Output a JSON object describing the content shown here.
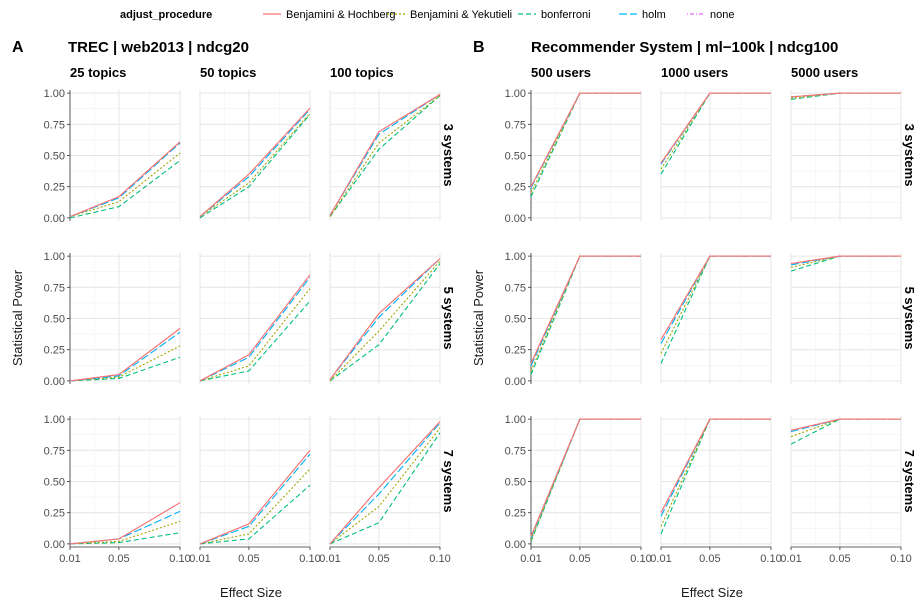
{
  "legend": {
    "title": "adjust_procedure",
    "items": [
      {
        "label": "Benjamini & Hochberg",
        "color": "#F8766D",
        "dash": "solid"
      },
      {
        "label": "Benjamini & Yekutieli",
        "color": "#A3A500",
        "dash": "dotted"
      },
      {
        "label": "bonferroni",
        "color": "#00BF7D",
        "dash": "dashed"
      },
      {
        "label": "holm",
        "color": "#00B0F6",
        "dash": "longdash"
      },
      {
        "label": "none",
        "color": "#E76BF3",
        "dash": "dotdash"
      }
    ]
  },
  "panels": [
    {
      "letter": "A",
      "title": "TREC | web2013 | ndcg20",
      "columns": [
        "25 topics",
        "50 topics",
        "100 topics"
      ]
    },
    {
      "letter": "B",
      "title": "Recommender System | ml−100k | ndcg100",
      "columns": [
        "500 users",
        "1000 users",
        "5000 users"
      ]
    }
  ],
  "rows": [
    "3 systems",
    "5 systems",
    "7 systems"
  ],
  "x_ticks": [
    "0.01",
    "0.05",
    "0.10"
  ],
  "y_ticks": [
    "0.00",
    "0.25",
    "0.50",
    "0.75",
    "1.00"
  ],
  "ylabel": "Statistical Power",
  "xlabel": "Effect Size",
  "chart_data": {
    "type": "line",
    "x": [
      0.01,
      0.05,
      0.1
    ],
    "ylim": [
      0,
      1
    ],
    "series_names": [
      "Benjamini & Hochberg",
      "Benjamini & Yekutieli",
      "bonferroni",
      "holm",
      "none"
    ],
    "facets": [
      {
        "panel": "A",
        "column": "25 topics",
        "row": "3 systems",
        "values": [
          [
            0.01,
            0.17,
            0.61
          ],
          [
            0.01,
            0.13,
            0.52
          ],
          [
            0.0,
            0.09,
            0.46
          ],
          [
            0.01,
            0.16,
            0.6
          ],
          [
            0.01,
            0.17,
            0.61
          ]
        ]
      },
      {
        "panel": "A",
        "column": "50 topics",
        "row": "3 systems",
        "values": [
          [
            0.01,
            0.35,
            0.88
          ],
          [
            0.01,
            0.28,
            0.84
          ],
          [
            0.0,
            0.25,
            0.83
          ],
          [
            0.01,
            0.33,
            0.87
          ],
          [
            0.01,
            0.35,
            0.88
          ]
        ]
      },
      {
        "panel": "A",
        "column": "100 topics",
        "row": "3 systems",
        "values": [
          [
            0.02,
            0.69,
            0.99
          ],
          [
            0.01,
            0.6,
            0.98
          ],
          [
            0.01,
            0.55,
            0.98
          ],
          [
            0.02,
            0.67,
            0.99
          ],
          [
            0.02,
            0.69,
            0.99
          ]
        ]
      },
      {
        "panel": "A",
        "column": "25 topics",
        "row": "5 systems",
        "values": [
          [
            0.0,
            0.05,
            0.42
          ],
          [
            0.0,
            0.03,
            0.28
          ],
          [
            0.0,
            0.02,
            0.19
          ],
          [
            0.0,
            0.04,
            0.39
          ],
          [
            0.0,
            0.05,
            0.42
          ]
        ]
      },
      {
        "panel": "A",
        "column": "50 topics",
        "row": "5 systems",
        "values": [
          [
            0.0,
            0.21,
            0.85
          ],
          [
            0.0,
            0.12,
            0.74
          ],
          [
            0.0,
            0.08,
            0.64
          ],
          [
            0.0,
            0.19,
            0.83
          ],
          [
            0.0,
            0.21,
            0.85
          ]
        ]
      },
      {
        "panel": "A",
        "column": "100 topics",
        "row": "5 systems",
        "values": [
          [
            0.01,
            0.54,
            0.98
          ],
          [
            0.0,
            0.4,
            0.96
          ],
          [
            0.0,
            0.29,
            0.94
          ],
          [
            0.01,
            0.51,
            0.98
          ],
          [
            0.01,
            0.54,
            0.98
          ]
        ]
      },
      {
        "panel": "A",
        "column": "25 topics",
        "row": "7 systems",
        "values": [
          [
            0.0,
            0.04,
            0.33
          ],
          [
            0.0,
            0.02,
            0.18
          ],
          [
            0.0,
            0.01,
            0.09
          ],
          [
            0.0,
            0.04,
            0.26
          ],
          [
            0.0,
            0.04,
            0.33
          ]
        ]
      },
      {
        "panel": "A",
        "column": "50 topics",
        "row": "7 systems",
        "values": [
          [
            0.0,
            0.16,
            0.75
          ],
          [
            0.0,
            0.08,
            0.6
          ],
          [
            0.0,
            0.04,
            0.47
          ],
          [
            0.0,
            0.14,
            0.72
          ],
          [
            0.0,
            0.16,
            0.75
          ]
        ]
      },
      {
        "panel": "A",
        "column": "100 topics",
        "row": "7 systems",
        "values": [
          [
            0.0,
            0.45,
            0.98
          ],
          [
            0.0,
            0.3,
            0.93
          ],
          [
            0.0,
            0.17,
            0.89
          ],
          [
            0.0,
            0.4,
            0.97
          ],
          [
            0.0,
            0.45,
            0.98
          ]
        ]
      },
      {
        "panel": "B",
        "column": "500 users",
        "row": "3 systems",
        "values": [
          [
            0.25,
            1.0,
            1.0
          ],
          [
            0.2,
            1.0,
            1.0
          ],
          [
            0.17,
            1.0,
            1.0
          ],
          [
            0.24,
            1.0,
            1.0
          ],
          [
            0.25,
            1.0,
            1.0
          ]
        ]
      },
      {
        "panel": "B",
        "column": "1000 users",
        "row": "3 systems",
        "values": [
          [
            0.44,
            1.0,
            1.0
          ],
          [
            0.39,
            1.0,
            1.0
          ],
          [
            0.35,
            1.0,
            1.0
          ],
          [
            0.43,
            1.0,
            1.0
          ],
          [
            0.44,
            1.0,
            1.0
          ]
        ]
      },
      {
        "panel": "B",
        "column": "5000 users",
        "row": "3 systems",
        "values": [
          [
            0.97,
            1.0,
            1.0
          ],
          [
            0.96,
            1.0,
            1.0
          ],
          [
            0.95,
            1.0,
            1.0
          ],
          [
            0.97,
            1.0,
            1.0
          ],
          [
            0.97,
            1.0,
            1.0
          ]
        ]
      },
      {
        "panel": "B",
        "column": "500 users",
        "row": "5 systems",
        "values": [
          [
            0.14,
            1.0,
            1.0
          ],
          [
            0.08,
            1.0,
            1.0
          ],
          [
            0.05,
            1.0,
            1.0
          ],
          [
            0.12,
            1.0,
            1.0
          ],
          [
            0.14,
            1.0,
            1.0
          ]
        ]
      },
      {
        "panel": "B",
        "column": "1000 users",
        "row": "5 systems",
        "values": [
          [
            0.33,
            1.0,
            1.0
          ],
          [
            0.22,
            1.0,
            1.0
          ],
          [
            0.14,
            1.0,
            1.0
          ],
          [
            0.3,
            1.0,
            1.0
          ],
          [
            0.33,
            1.0,
            1.0
          ]
        ]
      },
      {
        "panel": "B",
        "column": "5000 users",
        "row": "5 systems",
        "values": [
          [
            0.94,
            1.0,
            1.0
          ],
          [
            0.91,
            1.0,
            1.0
          ],
          [
            0.88,
            1.0,
            1.0
          ],
          [
            0.93,
            1.0,
            1.0
          ],
          [
            0.94,
            1.0,
            1.0
          ]
        ]
      },
      {
        "panel": "B",
        "column": "500 users",
        "row": "7 systems",
        "values": [
          [
            0.06,
            1.0,
            1.0
          ],
          [
            0.03,
            1.0,
            1.0
          ],
          [
            0.02,
            1.0,
            1.0
          ],
          [
            0.05,
            1.0,
            1.0
          ],
          [
            0.06,
            1.0,
            1.0
          ]
        ]
      },
      {
        "panel": "B",
        "column": "1000 users",
        "row": "7 systems",
        "values": [
          [
            0.25,
            1.0,
            1.0
          ],
          [
            0.14,
            1.0,
            1.0
          ],
          [
            0.08,
            1.0,
            1.0
          ],
          [
            0.22,
            1.0,
            1.0
          ],
          [
            0.25,
            1.0,
            1.0
          ]
        ]
      },
      {
        "panel": "B",
        "column": "5000 users",
        "row": "7 systems",
        "values": [
          [
            0.91,
            1.0,
            1.0
          ],
          [
            0.86,
            1.0,
            1.0
          ],
          [
            0.8,
            1.0,
            1.0
          ],
          [
            0.9,
            1.0,
            1.0
          ],
          [
            0.91,
            1.0,
            1.0
          ]
        ]
      }
    ]
  }
}
